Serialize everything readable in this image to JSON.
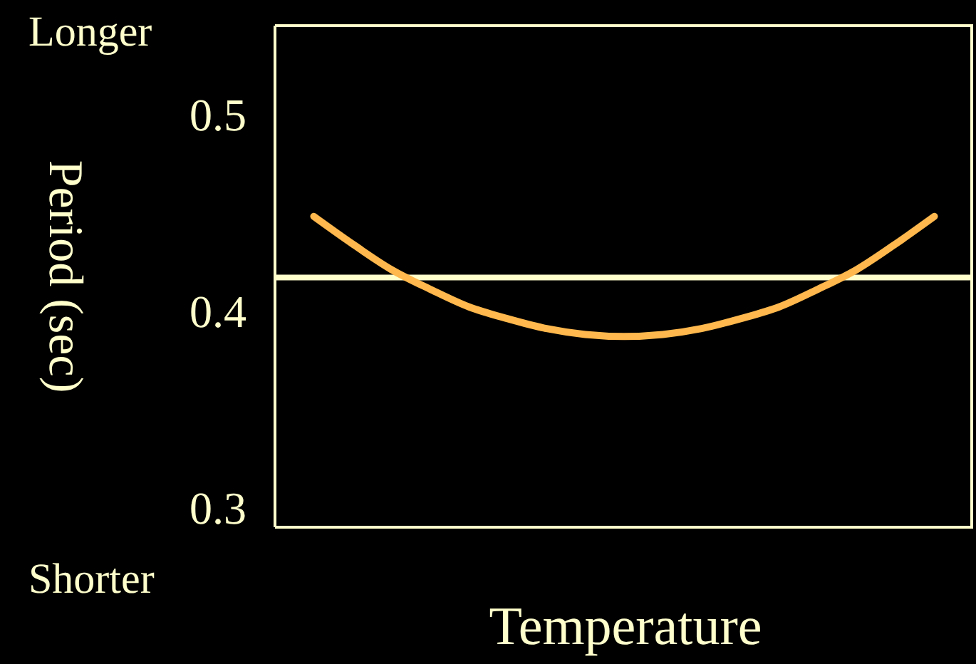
{
  "chart_data": {
    "type": "line",
    "xlabel": "Temperature",
    "ylabel": "Period (sec)",
    "categories": [
      null,
      null,
      null,
      null,
      null,
      null,
      null,
      null,
      null,
      null,
      null,
      null,
      null,
      null,
      null,
      null,
      null,
      null,
      null
    ],
    "series": [
      {
        "color": "#ffb84d",
        "values": [
          null,
          0.448,
          0.434,
          0.421,
          0.411,
          0.402,
          0.396,
          0.391,
          0.388,
          0.387,
          0.388,
          0.391,
          0.396,
          0.402,
          0.411,
          0.421,
          0.434,
          0.448,
          null
        ]
      }
    ],
    "ylim": [
      0.29,
      0.545
    ],
    "yticks": [
      0.3,
      0.4,
      0.5
    ],
    "tick_labels": "y",
    "grid": false,
    "marker": "none",
    "line_style": "solid",
    "ref_lines": [
      {
        "axis": "y",
        "value": 0.417,
        "color": "#ffffcc"
      }
    ],
    "annotations": [
      "Longer",
      "Shorter"
    ]
  }
}
